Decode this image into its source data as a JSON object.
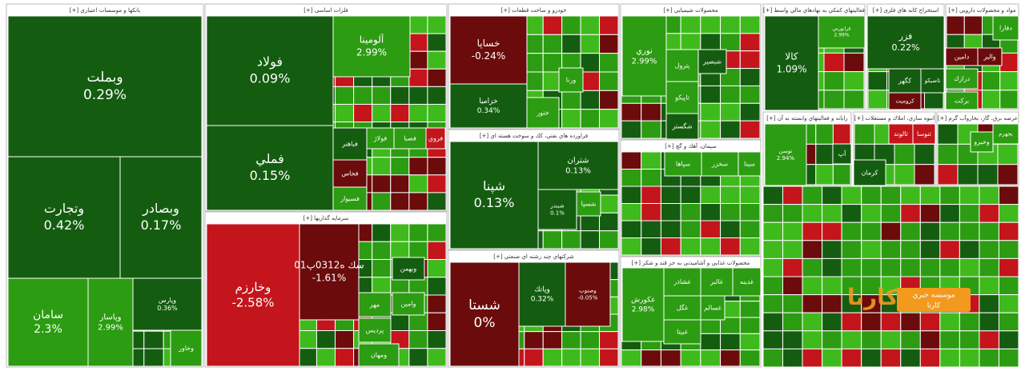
{
  "sectors": [
    {
      "title": "بانکها و موسسات اعتباری [+]",
      "tiles": [
        {
          "name": "وبملت",
          "change": "0.29%"
        },
        {
          "name": "وتجارت",
          "change": "0.42%"
        },
        {
          "name": "وبصادر",
          "change": "0.17%"
        },
        {
          "name": "سامان",
          "change": "2.3%"
        },
        {
          "name": "وپاسار",
          "change": "2.99%"
        },
        {
          "name": "وپارس",
          "change": "0.36%"
        },
        {
          "name": "وخاور"
        }
      ]
    },
    {
      "title": "فلزات اساسی [+]",
      "tiles": [
        {
          "name": "فولاد",
          "change": "0.09%"
        },
        {
          "name": "فملي",
          "change": "0.15%"
        },
        {
          "name": "آلومينا",
          "change": "2.99%"
        },
        {
          "name": "فباهنر"
        },
        {
          "name": "فخاس"
        },
        {
          "name": "فولاژ"
        },
        {
          "name": "فصبا"
        },
        {
          "name": "فروي"
        },
        {
          "name": "فسيوار"
        }
      ]
    },
    {
      "title": "سرمايه گذاريها [+]",
      "tiles": [
        {
          "name": "وخارزم",
          "change": "-2.58%"
        },
        {
          "name": "سك ه0312پ01",
          "change": "-1.61%"
        },
        {
          "name": "وبهمن"
        },
        {
          "name": "مهر"
        },
        {
          "name": "وامين"
        },
        {
          "name": "پرديس"
        },
        {
          "name": "ومهان"
        }
      ]
    },
    {
      "title": "خودرو و ساخت قطعات [+]",
      "tiles": [
        {
          "name": "خساپا",
          "change": "-0.24%"
        },
        {
          "name": "خزاميا",
          "change": "0.34%"
        },
        {
          "name": "ختور"
        },
        {
          "name": "ورنا"
        }
      ]
    },
    {
      "title": "فراورده هاي نفتي، كك و سوخت هسته اي [+]",
      "tiles": [
        {
          "name": "شپنا",
          "change": "0.13%"
        },
        {
          "name": "شتران",
          "change": "0.13%"
        },
        {
          "name": "شبندر",
          "change": "0.1%"
        },
        {
          "name": "شسپا"
        }
      ]
    },
    {
      "title": "شركتهاي چند رشته اي صنعتي [+]",
      "tiles": [
        {
          "name": "شستا",
          "change": "0%"
        },
        {
          "name": "وپاتك",
          "change": "0.32%"
        },
        {
          "name": "وصنوپ",
          "change": "-0.05%"
        }
      ]
    },
    {
      "title": "محصولات شيميايي [+]",
      "tiles": [
        {
          "name": "نوري",
          "change": "2.99%"
        },
        {
          "name": "پترول"
        },
        {
          "name": "تاپيكو"
        },
        {
          "name": "شگستر"
        },
        {
          "name": "شبصير"
        }
      ]
    },
    {
      "title": "سيمان، آهك و گچ [+]",
      "tiles": [
        {
          "name": "سيتا"
        },
        {
          "name": "سخزر"
        },
        {
          "name": "سپاها"
        }
      ]
    },
    {
      "title": "محصولات غذايي و آشاميدني به جز قند و شكر [+]",
      "tiles": [
        {
          "name": "غكورش",
          "change": "2.98%"
        },
        {
          "name": "غشاذر"
        },
        {
          "name": "غالبر"
        },
        {
          "name": "غدينه"
        },
        {
          "name": "غگل"
        },
        {
          "name": "غسالم"
        },
        {
          "name": "غبيتا"
        }
      ]
    },
    {
      "title": "فعاليتهاي كمكي به نهادهاي مالي واسط [+]",
      "tiles": [
        {
          "name": "كالا",
          "change": "1.09%"
        },
        {
          "name": "فرابورس",
          "change": "2.99%"
        }
      ]
    },
    {
      "title": "استخراج كانه هاي فلزي [+]",
      "tiles": [
        {
          "name": "فزر",
          "change": "0.22%"
        },
        {
          "name": "كگهر"
        },
        {
          "name": "تاصيكو"
        },
        {
          "name": "كروميت"
        }
      ]
    },
    {
      "title": "مواد و محصولات دارويي [+]",
      "tiles": [
        {
          "name": "دفارا"
        },
        {
          "name": "دامين"
        },
        {
          "name": "والبر"
        },
        {
          "name": "درازك"
        },
        {
          "name": "بركت"
        }
      ]
    },
    {
      "title": "رايانه و فعاليتهاي وابسته به آن [+]",
      "tiles": [
        {
          "name": "توسن",
          "change": "2.94%"
        },
        {
          "name": "آپ"
        }
      ]
    },
    {
      "title": "انبوه سازي، املاك و مستغلات [+]",
      "tiles": [
        {
          "name": "ثنوسا"
        },
        {
          "name": "ثالوند"
        },
        {
          "name": "كرمان"
        }
      ]
    },
    {
      "title": "عرضه برق، گاز، بخاروآب گرم [+]",
      "tiles": [
        {
          "name": "بجهرم"
        },
        {
          "name": "وخيرو"
        }
      ]
    }
  ],
  "watermark": {
    "line1": "موسسه خبري",
    "line2": "كارنا",
    "logo": "كارنا"
  }
}
